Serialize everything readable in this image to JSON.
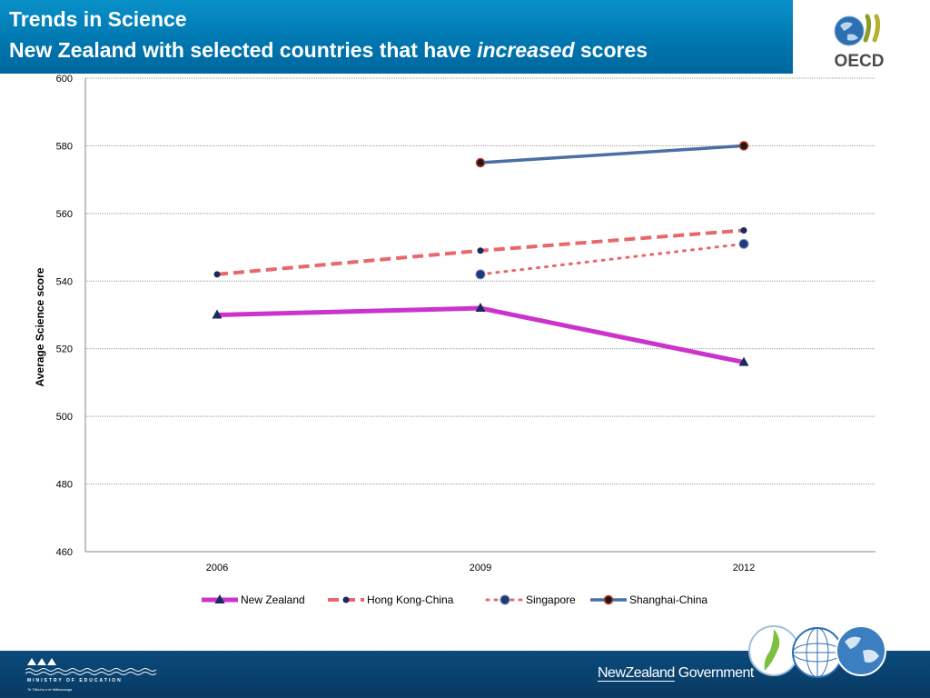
{
  "header": {
    "title_line1": "Trends in Science",
    "title_line2_pre": "New Zealand with selected countries that have ",
    "title_line2_em": "increased",
    "title_line2_post": " scores",
    "logo_text": "OECD"
  },
  "footer": {
    "ministry": "MINISTRY OF EDUCATION",
    "ministry_sub": "Te Tāhuhu o te Mātauranga",
    "gov_a": "NewZealand",
    "gov_b": "Government"
  },
  "colors": {
    "header": "#0a7fbf",
    "footer": "#0b4a7c",
    "new_zealand": "#cc33cc",
    "hong_kong": "#e8676b",
    "singapore": "#e8676b",
    "shanghai": "#4a6fa5",
    "marker_dark": "#1a2a5a"
  },
  "chart_data": {
    "type": "line",
    "categories": [
      "2006",
      "2009",
      "2012"
    ],
    "ylabel": "Average Science score",
    "xlabel": "",
    "ylim": [
      460,
      600
    ],
    "yticks": [
      460,
      480,
      500,
      520,
      540,
      560,
      580,
      600
    ],
    "grid": true,
    "legend_position": "bottom",
    "series": [
      {
        "name": "New Zealand",
        "values": [
          530,
          532,
          516
        ],
        "style": "solid-thick",
        "marker": "triangle"
      },
      {
        "name": "Hong Kong-China",
        "values": [
          542,
          549,
          555
        ],
        "style": "dashed",
        "marker": "dot"
      },
      {
        "name": "Singapore",
        "values": [
          null,
          542,
          551
        ],
        "style": "dotted",
        "marker": "circle"
      },
      {
        "name": "Shanghai-China",
        "values": [
          null,
          575,
          580
        ],
        "style": "solid",
        "marker": "ring"
      }
    ]
  }
}
